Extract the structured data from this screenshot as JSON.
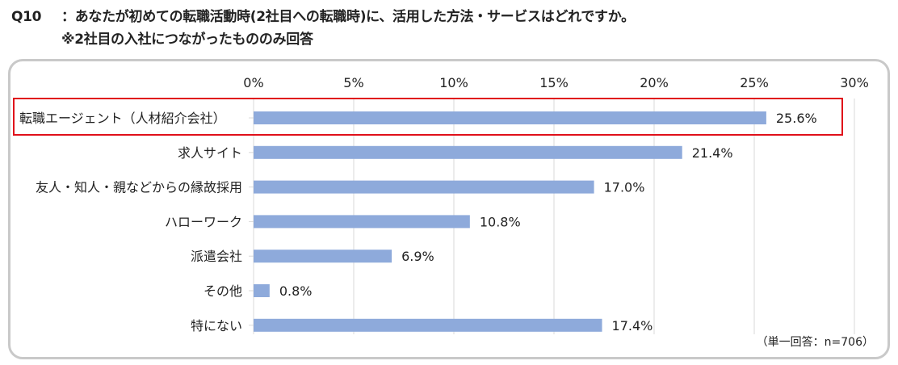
{
  "question": {
    "number": "Q10",
    "text": "：あなたが初めての転職活動時(2社目への転職時)に、活用した方法・サービスはどれですか。",
    "note": "※2社目の入社につながったもののみ回答"
  },
  "footnote": "（単一回答：n=706）",
  "highlight": {
    "category": "転職エージェント（人材紹介会社）",
    "color": "#e0101a"
  },
  "colors": {
    "bar": "#8eaadb",
    "grid": "#d9d9d9",
    "frame": "#c9c9c9"
  },
  "chart_data": {
    "type": "bar",
    "orientation": "horizontal",
    "title": "",
    "xlabel": "",
    "ylabel": "",
    "xlim": [
      0,
      30
    ],
    "ticks": [
      0,
      5,
      10,
      15,
      20,
      25,
      30
    ],
    "tick_labels": [
      "0%",
      "5%",
      "10%",
      "15%",
      "20%",
      "25%",
      "30%"
    ],
    "grid": true,
    "categories": [
      "転職エージェント（人材紹介会社）",
      "求人サイト",
      "友人・知人・親などからの縁故採用",
      "ハローワーク",
      "派遣会社",
      "その他",
      "特にない"
    ],
    "values": [
      25.6,
      21.4,
      17.0,
      10.8,
      6.9,
      0.8,
      17.4
    ],
    "value_labels": [
      "25.6%",
      "21.4%",
      "17.0%",
      "10.8%",
      "6.9%",
      "0.8%",
      "17.4%"
    ]
  }
}
